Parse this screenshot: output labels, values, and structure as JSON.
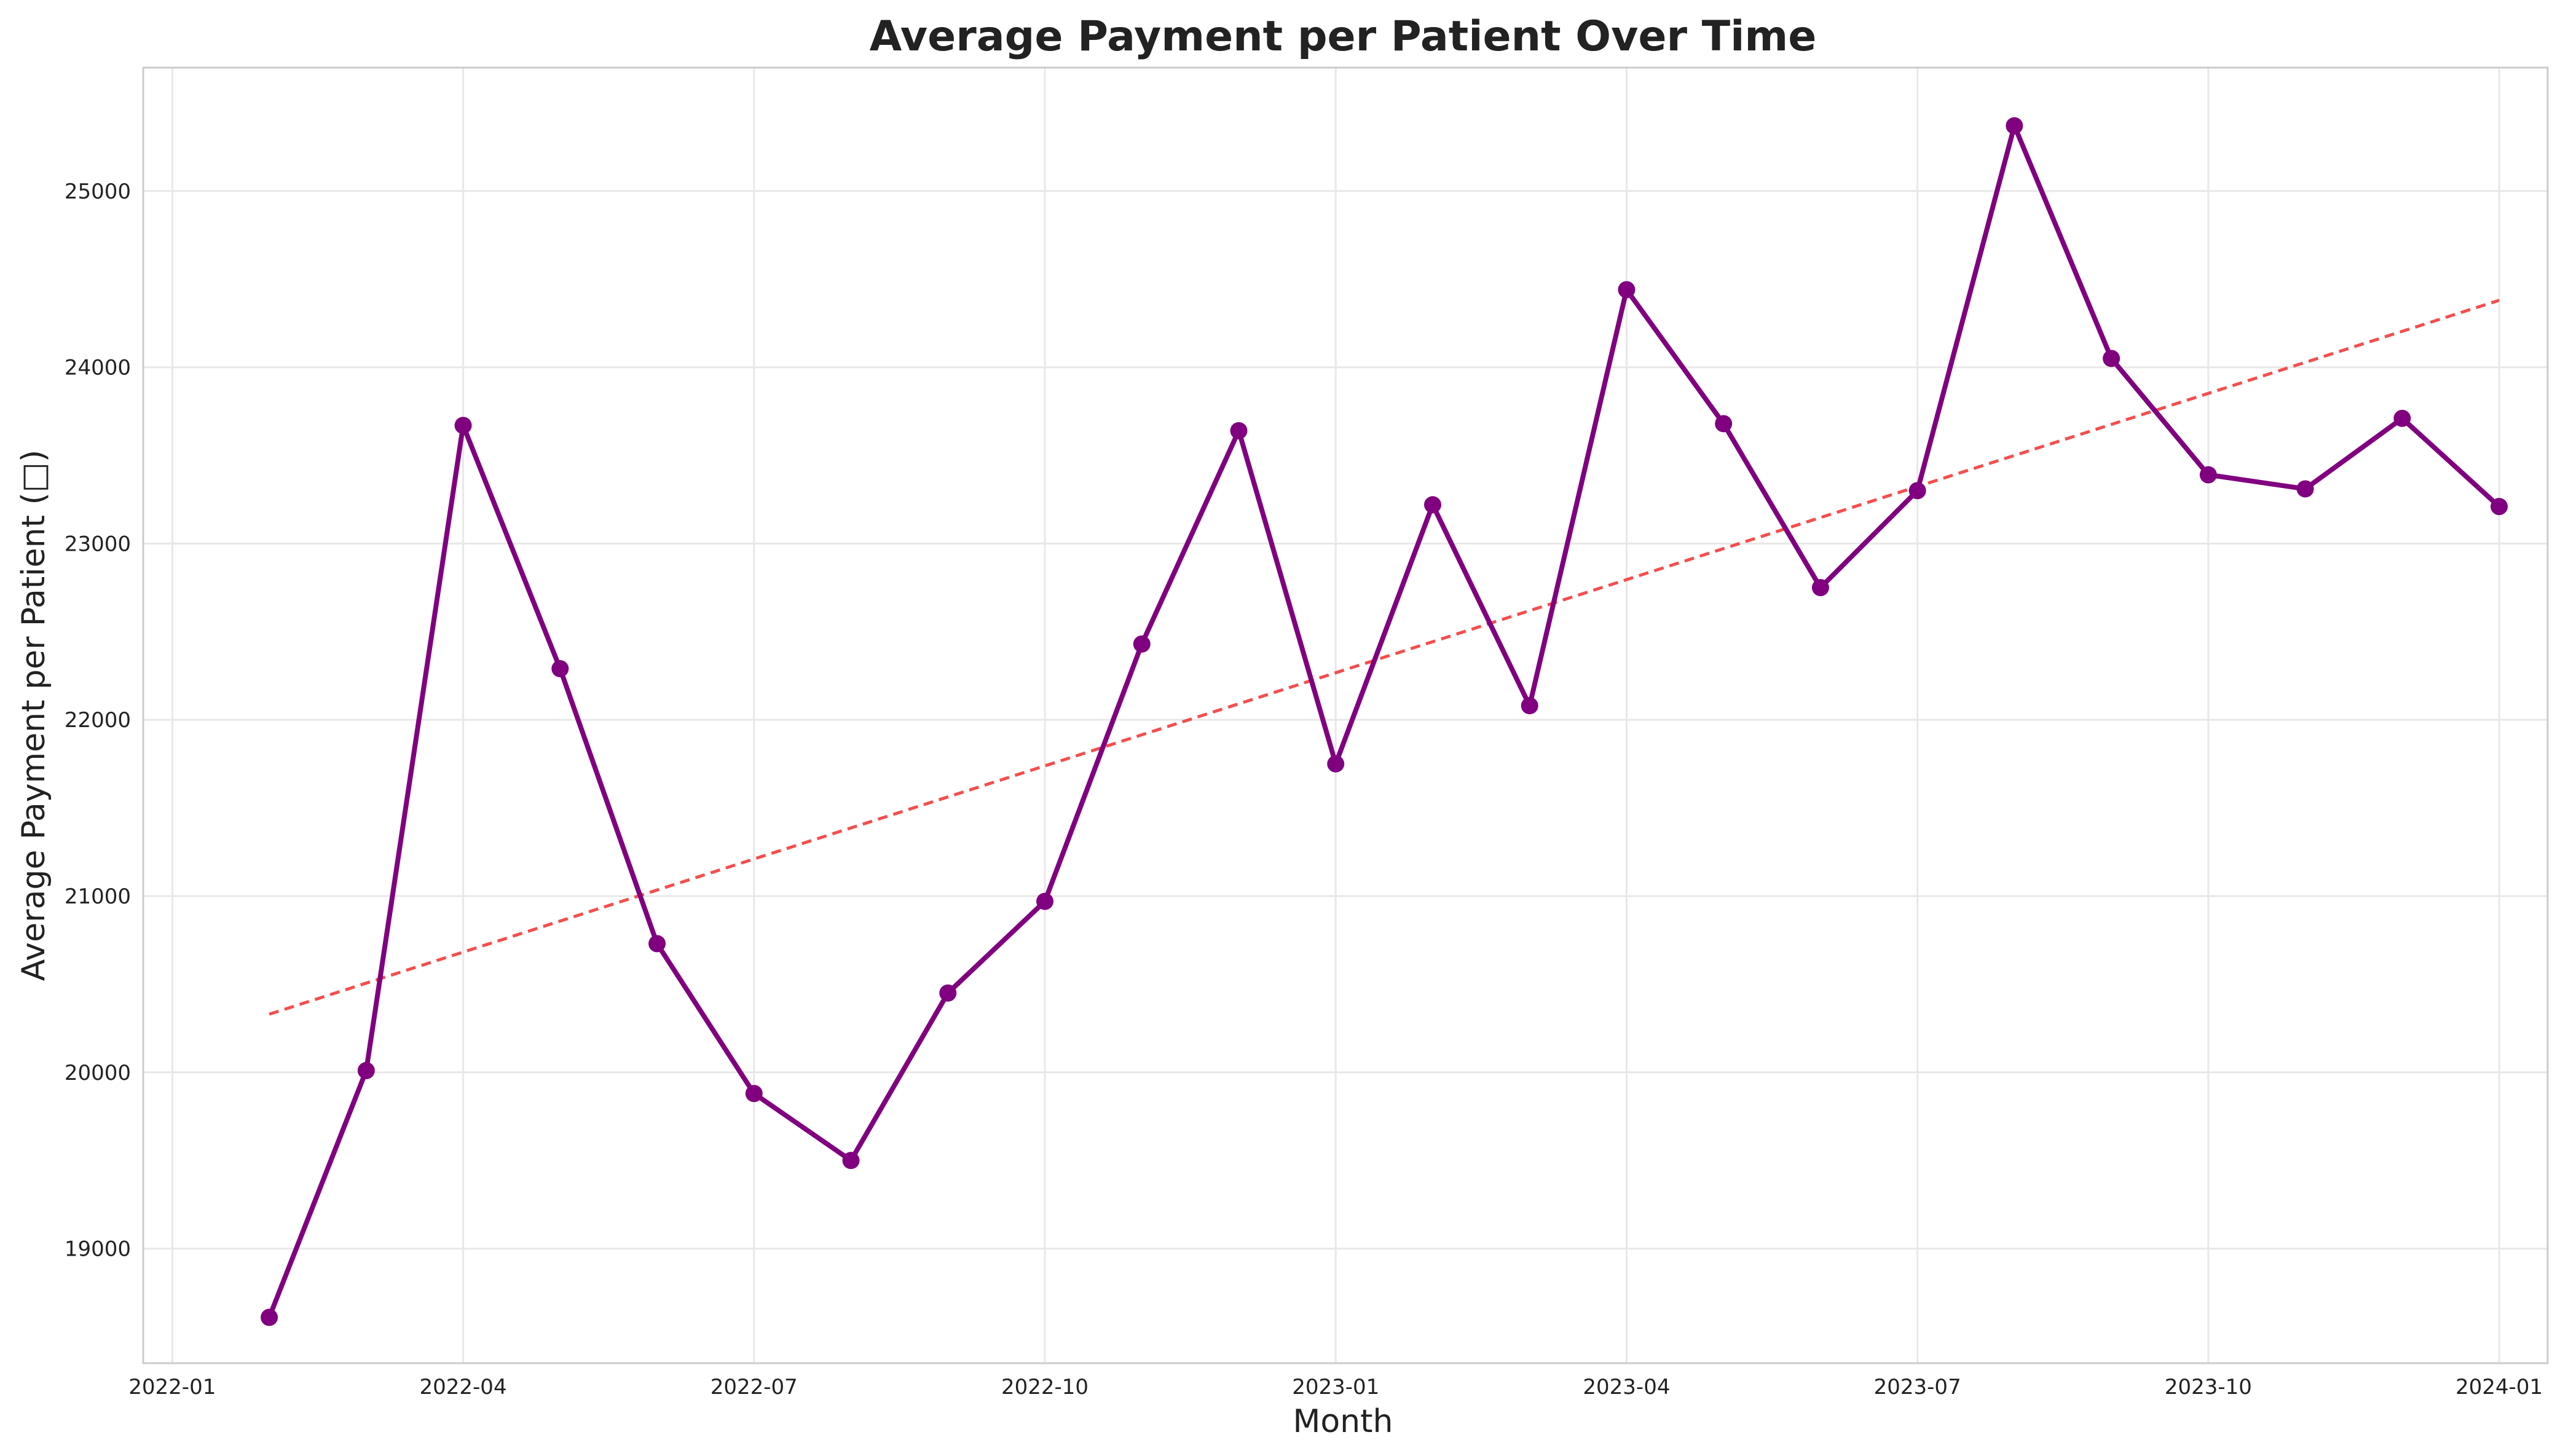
{
  "chart_data": {
    "type": "line",
    "title": "Average Payment per Patient Over Time",
    "xlabel": "Month",
    "ylabel": "Average Payment per Patient (□)",
    "x_ticks": [
      "2022-01",
      "2022-04",
      "2022-07",
      "2022-10",
      "2023-01",
      "2023-04",
      "2023-07",
      "2023-10",
      "2024-01"
    ],
    "y_ticks": [
      19000,
      20000,
      21000,
      22000,
      23000,
      24000,
      25000
    ],
    "ylim": [
      18350,
      25700
    ],
    "xlim_months": [
      -0.3,
      24.5
    ],
    "grid": true,
    "series": [
      {
        "name": "Average Payment per Patient",
        "color": "#800080",
        "style": "solid-with-markers",
        "x": [
          "2022-02",
          "2022-03",
          "2022-04",
          "2022-05",
          "2022-06",
          "2022-07",
          "2022-08",
          "2022-09",
          "2022-10",
          "2022-11",
          "2022-12",
          "2023-01",
          "2023-02",
          "2023-03",
          "2023-04",
          "2023-05",
          "2023-06",
          "2023-07",
          "2023-08",
          "2023-09",
          "2023-10",
          "2023-11",
          "2023-12",
          "2024-01"
        ],
        "month_index": [
          1,
          2,
          3,
          4,
          5,
          6,
          7,
          8,
          9,
          10,
          11,
          12,
          13,
          14,
          15,
          16,
          17,
          18,
          19,
          20,
          21,
          22,
          23,
          24
        ],
        "values": [
          18610,
          20010,
          23670,
          22290,
          20730,
          19880,
          19500,
          20450,
          20970,
          22430,
          23640,
          21750,
          23220,
          22080,
          24440,
          23680,
          22750,
          23300,
          25370,
          24050,
          23390,
          23310,
          23710,
          23210
        ]
      },
      {
        "name": "Trend",
        "color": "#f24444",
        "style": "dashed",
        "month_index": [
          1,
          24
        ],
        "values": [
          20330,
          24380
        ]
      }
    ]
  }
}
